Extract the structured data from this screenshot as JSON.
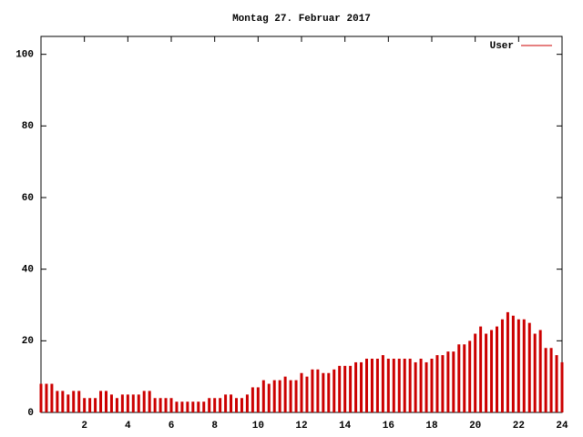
{
  "chart_data": {
    "type": "impulses",
    "title": "Montag 27. Februar 2017",
    "x": [
      0,
      0.25,
      0.5,
      0.75,
      1,
      1.25,
      1.5,
      1.75,
      2,
      2.25,
      2.5,
      2.75,
      3,
      3.25,
      3.5,
      3.75,
      4,
      4.25,
      4.5,
      4.75,
      5,
      5.25,
      5.5,
      5.75,
      6,
      6.25,
      6.5,
      6.75,
      7,
      7.25,
      7.5,
      7.75,
      8,
      8.25,
      8.5,
      8.75,
      9,
      9.25,
      9.5,
      9.75,
      10,
      10.25,
      10.5,
      10.75,
      11,
      11.25,
      11.5,
      11.75,
      12,
      12.25,
      12.5,
      12.75,
      13,
      13.25,
      13.5,
      13.75,
      14,
      14.25,
      14.5,
      14.75,
      15,
      15.25,
      15.5,
      15.75,
      16,
      16.25,
      16.5,
      16.75,
      17,
      17.25,
      17.5,
      17.75,
      18,
      18.25,
      18.5,
      18.75,
      19,
      19.25,
      19.5,
      19.75,
      20,
      20.25,
      20.5,
      20.75,
      21,
      21.25,
      21.5,
      21.75,
      22,
      22.25,
      22.5,
      22.75,
      23,
      23.25,
      23.5,
      23.75,
      24
    ],
    "series": [
      {
        "name": "User",
        "color": "#cc0000",
        "values": [
          8,
          8,
          8,
          6,
          6,
          5,
          6,
          6,
          4,
          4,
          4,
          6,
          6,
          5,
          4,
          5,
          5,
          5,
          5,
          6,
          6,
          4,
          4,
          4,
          4,
          3,
          3,
          3,
          3,
          3,
          3,
          4,
          4,
          4,
          5,
          5,
          4,
          4,
          5,
          7,
          7,
          9,
          8,
          9,
          9,
          10,
          9,
          9,
          11,
          10,
          12,
          12,
          11,
          11,
          12,
          13,
          13,
          13,
          14,
          14,
          15,
          15,
          15,
          16,
          15,
          15,
          15,
          15,
          15,
          14,
          15,
          14,
          15,
          16,
          16,
          17,
          17,
          19,
          19,
          20,
          22,
          24,
          22,
          23,
          24,
          26,
          28,
          27,
          26,
          26,
          25,
          22,
          23,
          18,
          18,
          16,
          14
        ]
      }
    ],
    "xlim": [
      0,
      24
    ],
    "xticks": [
      2,
      4,
      6,
      8,
      10,
      12,
      14,
      16,
      18,
      20,
      22,
      24
    ],
    "ylim": [
      0,
      105
    ],
    "yticks": [
      0,
      20,
      40,
      60,
      80,
      100
    ]
  }
}
